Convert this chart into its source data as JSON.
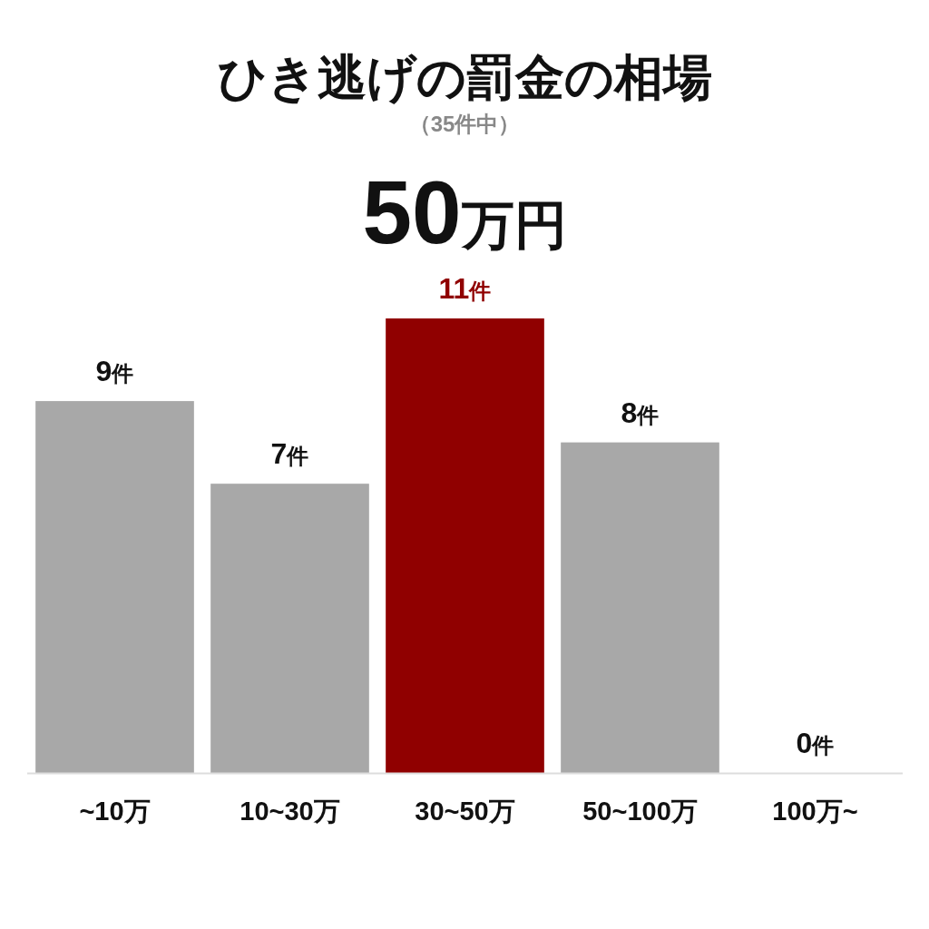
{
  "chart_data": {
    "type": "bar",
    "title": "ひき逃げの罰金の相場",
    "subtitle": "（35件中）",
    "annotations": [
      "50万円"
    ],
    "categories": [
      "~10万",
      "10~30万",
      "30~50万",
      "50~100万",
      "100万~"
    ],
    "values": [
      9,
      7,
      11,
      8,
      0
    ],
    "colors": [
      "#a8a8a8",
      "#a8a8a8",
      "#900000",
      "#a8a8a8",
      "#a8a8a8"
    ],
    "value_labels": [
      "9件",
      "7件",
      "11件",
      "8件",
      "0件"
    ]
  }
}
